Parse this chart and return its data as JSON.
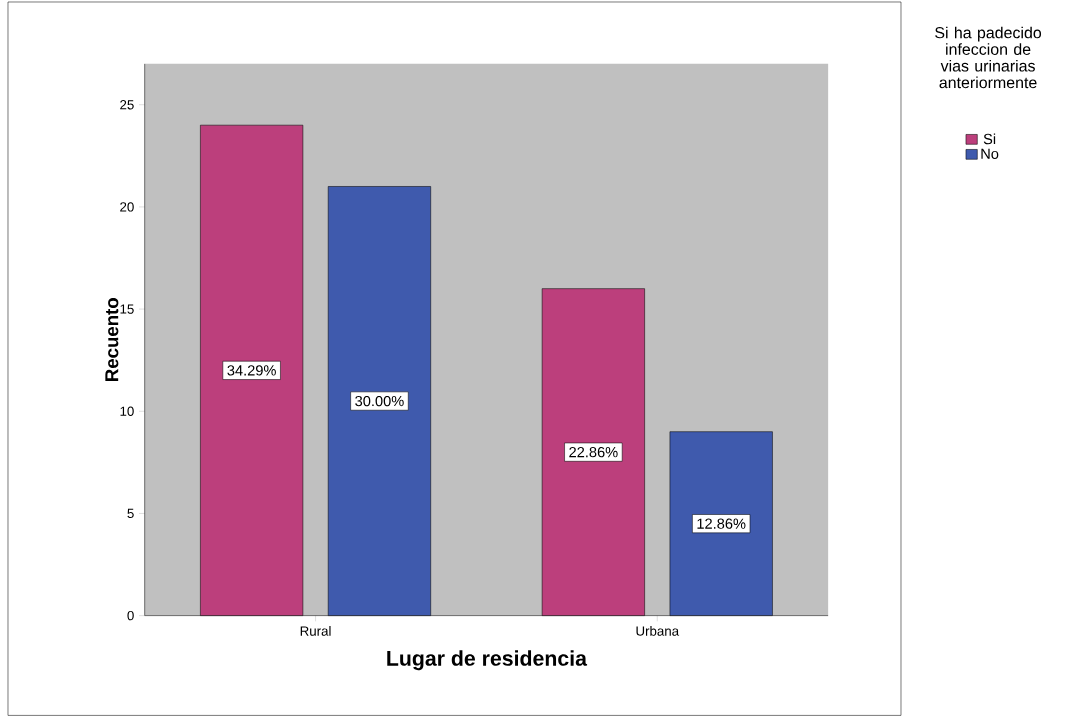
{
  "chart_data": {
    "type": "bar",
    "xlabel": "Lugar de residencia",
    "ylabel": "Recuento",
    "legend_title": "Si ha padecido infeccion de vias urinarias anteriormente",
    "categories": [
      "Rural",
      "Urbana"
    ],
    "series": [
      {
        "name": "Si",
        "color": "#bc3f7c",
        "values": [
          24,
          16
        ]
      },
      {
        "name": "No",
        "color": "#3f5aad",
        "values": [
          21,
          9
        ]
      }
    ],
    "annotations": [
      "34.29%",
      "30.00%",
      "22.86%",
      "12.86%"
    ],
    "ylim": [
      0,
      27
    ],
    "yticks": [
      0,
      5,
      10,
      15,
      20,
      25
    ],
    "legend": "right"
  }
}
